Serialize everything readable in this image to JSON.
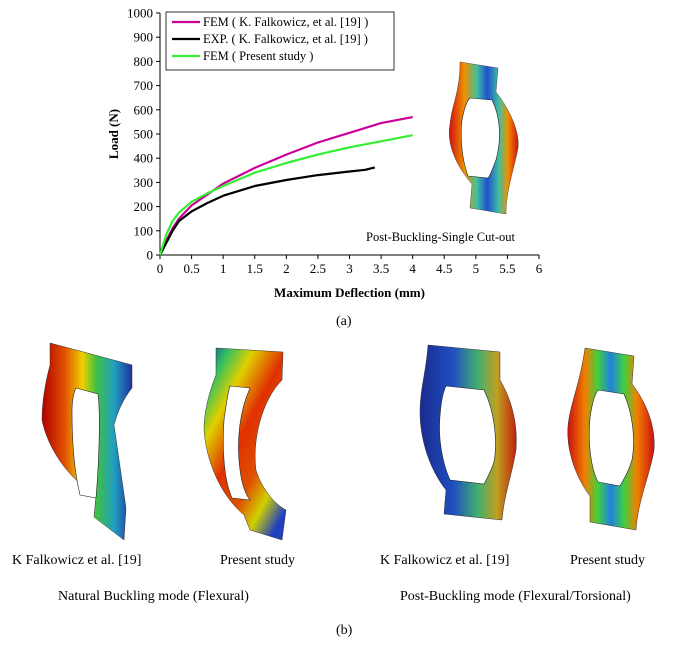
{
  "chart_data": {
    "type": "line",
    "title": "",
    "xlabel": "Maximum Deflection (mm)",
    "ylabel": "Load (N)",
    "xlim": [
      0,
      6
    ],
    "ylim": [
      0,
      1000
    ],
    "x_ticks": [
      "0",
      "0.5",
      "1",
      "1.5",
      "2",
      "2.5",
      "3",
      "3.5",
      "4",
      "4.5",
      "5",
      "5.5",
      "6"
    ],
    "y_ticks": [
      "0",
      "100",
      "200",
      "300",
      "400",
      "500",
      "600",
      "700",
      "800",
      "900",
      "1000"
    ],
    "grid": false,
    "legend_position": "top-left",
    "annotation": "Post-Buckling-Single Cut-out",
    "series": [
      {
        "name": "FEM ( K. Falkowicz, et al. [19] )",
        "color": "#cc0099",
        "x": [
          0,
          0.1,
          0.2,
          0.3,
          0.5,
          0.75,
          1.0,
          1.5,
          2.0,
          2.5,
          3.0,
          3.5,
          4.0
        ],
        "y": [
          0,
          60,
          110,
          150,
          205,
          250,
          295,
          360,
          415,
          465,
          505,
          545,
          570
        ]
      },
      {
        "name": "EXP. ( K. Falkowicz, et al. [19] )",
        "color": "#000000",
        "x": [
          0,
          0.1,
          0.2,
          0.3,
          0.5,
          0.75,
          1.0,
          1.5,
          2.0,
          2.5,
          3.0,
          3.25,
          3.4
        ],
        "y": [
          0,
          50,
          100,
          140,
          180,
          215,
          245,
          285,
          310,
          330,
          345,
          352,
          362
        ]
      },
      {
        "name": "FEM ( Present study )",
        "color": "#33ee33",
        "x": [
          0,
          0.1,
          0.2,
          0.3,
          0.5,
          0.75,
          1.0,
          1.5,
          2.0,
          2.5,
          3.0,
          3.5,
          4.0
        ],
        "y": [
          0,
          85,
          140,
          175,
          220,
          255,
          285,
          340,
          380,
          415,
          445,
          470,
          495
        ]
      }
    ]
  },
  "captions": {
    "part_a": "(a)",
    "part_b": "(b)",
    "fig1_label": "K Falkowicz et al. [19]",
    "fig2_label": "Present study",
    "fig3_label": "K Falkowicz et al. [19]",
    "fig4_label": "Present study",
    "group_left": "Natural Buckling mode (Flexural)",
    "group_right": "Post-Buckling mode (Flexural/Torsional)"
  },
  "colors": {
    "contour_low": "#1f2fb0",
    "contour_mid": "#39d63a",
    "contour_high": "#cc1010"
  }
}
